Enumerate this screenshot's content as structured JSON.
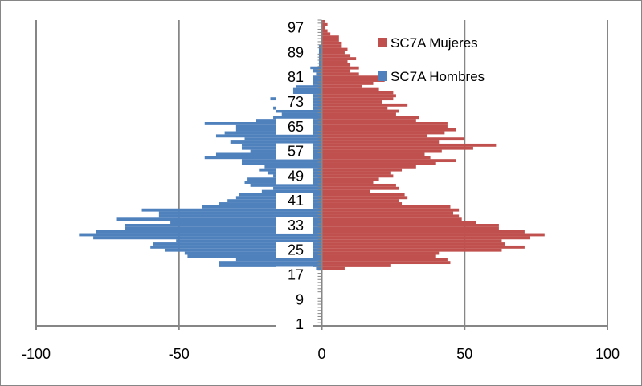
{
  "chart_data": {
    "type": "bar",
    "orientation": "horizontal",
    "title": "",
    "xlabel": "",
    "ylabel": "",
    "xlim": [
      -100,
      100
    ],
    "x_ticks": [
      "-100",
      "-50",
      "0",
      "50",
      "100"
    ],
    "y_tick_labels": [
      "1",
      "9",
      "17",
      "25",
      "33",
      "41",
      "49",
      "57",
      "65",
      "73",
      "81",
      "89",
      "97"
    ],
    "legend_position": "top-right",
    "grid": "vertical major gridlines",
    "ages_start": 1,
    "series": [
      {
        "name": "SC7A Mujeres",
        "color": "#C0504D",
        "values": [
          0,
          0,
          0,
          0,
          0,
          0,
          0,
          0,
          0,
          0,
          0,
          0,
          0,
          0,
          0,
          0,
          0,
          0,
          8,
          24,
          45,
          44,
          40,
          41,
          63,
          71,
          64,
          63,
          73,
          78,
          71,
          62,
          62,
          54,
          49,
          48,
          46,
          48,
          45,
          28,
          27,
          30,
          29,
          17,
          27,
          26,
          18,
          20,
          25,
          24,
          28,
          33,
          40,
          47,
          38,
          36,
          42,
          53,
          61,
          41,
          50,
          37,
          43,
          47,
          44,
          44,
          33,
          34,
          26,
          27,
          23,
          30,
          21,
          25,
          26,
          25,
          20,
          14,
          18,
          22,
          22,
          13,
          10,
          13,
          10,
          9,
          12,
          10,
          8,
          9,
          7,
          7,
          6,
          6,
          3,
          2,
          1,
          2,
          1
        ]
      },
      {
        "name": "SC7A Hombres",
        "color": "#4F81BD",
        "values": [
          0,
          0,
          0,
          0,
          0,
          0,
          0,
          0,
          0,
          0,
          0,
          0,
          0,
          0,
          0,
          0,
          0,
          0,
          -2,
          -36,
          -36,
          -30,
          -47,
          -48,
          -55,
          -60,
          -59,
          -51,
          -80,
          -85,
          -79,
          -69,
          -69,
          -53,
          -72,
          -57,
          -57,
          -63,
          -42,
          -36,
          -33,
          -30,
          -29,
          -21,
          -17,
          -25,
          -27,
          -26,
          -17,
          -19,
          -22,
          -20,
          -28,
          -28,
          -41,
          -37,
          -25,
          -28,
          -28,
          -32,
          -27,
          -37,
          -34,
          -30,
          -30,
          -41,
          -23,
          -17,
          -14,
          -16,
          -17,
          -14,
          -12,
          -18,
          -11,
          -10,
          -10,
          -9,
          -7,
          -4,
          -3,
          -2,
          -9,
          -4,
          -1,
          -1,
          -1,
          -1,
          -1,
          -1,
          -1,
          0,
          0,
          0,
          0,
          0,
          0,
          0,
          0
        ]
      }
    ]
  }
}
